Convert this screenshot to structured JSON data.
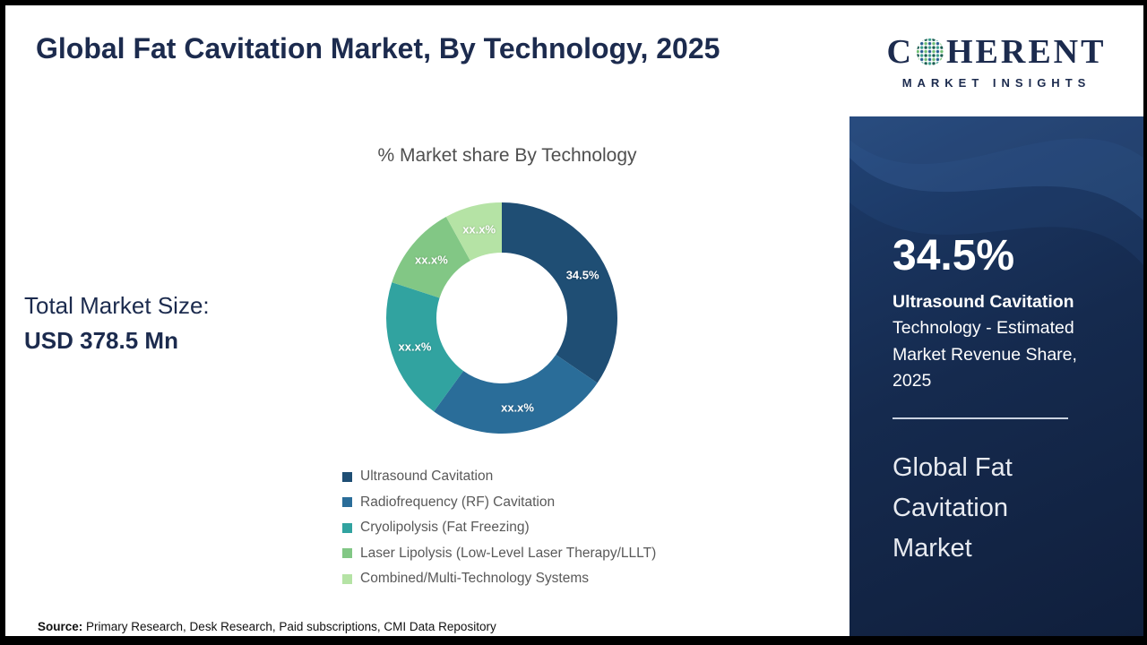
{
  "header": {
    "title": "Global Fat Cavitation Market, By Technology, 2025"
  },
  "market_size": {
    "label": "Total Market Size:",
    "value": "USD 378.5 Mn"
  },
  "chart_data": {
    "type": "pie",
    "donut": true,
    "title": "% Market share By Technology",
    "labels": [
      "Ultrasound Cavitation",
      "Radiofrequency (RF) Cavitation",
      "Cryolipolysis (Fat Freezing)",
      "Laser Lipolysis (Low-Level Laser Therapy/LLLT)",
      "Combined/Multi-Technology Systems"
    ],
    "values": [
      34.5,
      25.5,
      20,
      12,
      8
    ],
    "display_labels": [
      "34.5%",
      "xx.x%",
      "xx.x%",
      "xx.x%",
      "xx.x%"
    ],
    "colors": [
      "#1f4e74",
      "#2a6d99",
      "#31a3a0",
      "#82c785",
      "#b5e3a5"
    ],
    "legend_position": "bottom"
  },
  "source": {
    "label": "Source:",
    "text": "Primary Research, Desk Research, Paid subscriptions, CMI Data Repository"
  },
  "logo": {
    "c": "C",
    "rest": "HERENT",
    "tagline": "MARKET INSIGHTS"
  },
  "sidebar": {
    "stat_value": "34.5%",
    "stat_bold": "Ultrasound Cavitation",
    "stat_rest": "Technology - Estimated Market Revenue Share, 2025",
    "report_title": "Global Fat Cavitation Market"
  }
}
